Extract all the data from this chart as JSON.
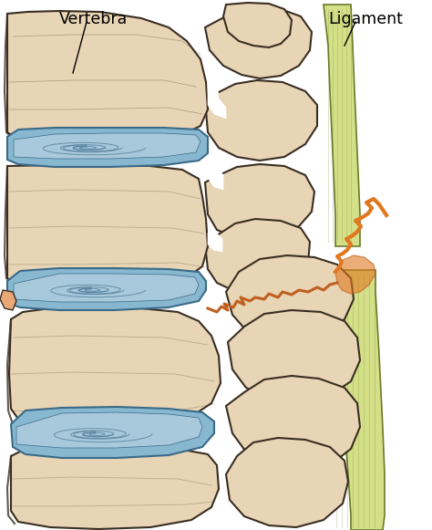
{
  "background_color": "#ffffff",
  "label_vertebra": "Vertebra",
  "label_ligament": "Ligament",
  "bone_color": "#e8d5b5",
  "bone_shadow": "#d4bc95",
  "bone_outline": "#3a2e22",
  "disc_color": "#88b8d0",
  "disc_outline": "#3a6a88",
  "disc_inner": "#5a9ab8",
  "ligament_color": "#d4e088",
  "ligament_outline": "#6a7a2a",
  "fracture_color": "#c06020",
  "fracture_color2": "#e07820",
  "line_width": 1.5,
  "figsize": [
    4.74,
    5.81
  ],
  "dpi": 100
}
